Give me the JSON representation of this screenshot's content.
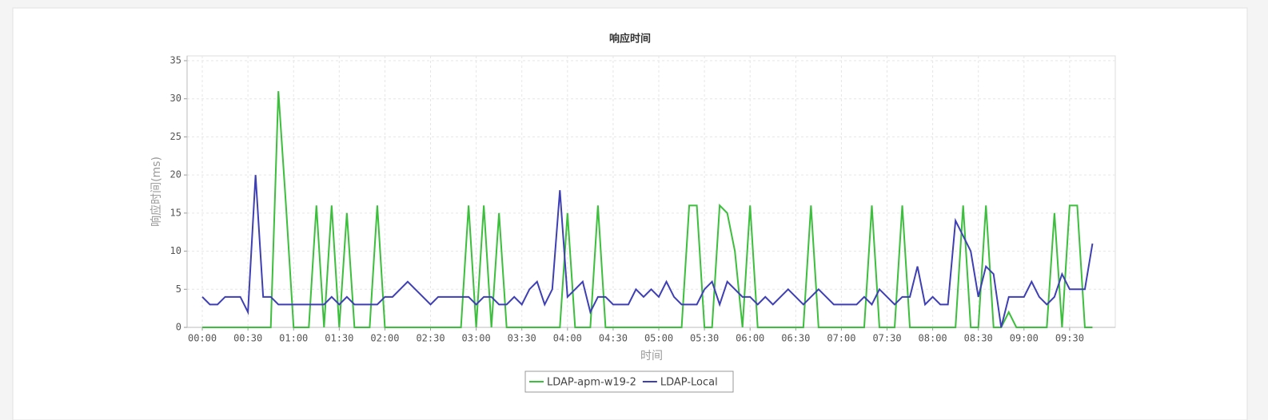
{
  "chart_data": {
    "type": "line",
    "title": "响应时间",
    "x_label": "时间",
    "y_label": "响应时间(ms)",
    "x": [
      0,
      5,
      10,
      15,
      20,
      25,
      30,
      35,
      40,
      45,
      50,
      55,
      60,
      65,
      70,
      75,
      80,
      85,
      90,
      95,
      100,
      105,
      110,
      115,
      120,
      125,
      130,
      135,
      140,
      145,
      150,
      155,
      160,
      165,
      170,
      175,
      180,
      185,
      190,
      195,
      200,
      205,
      210,
      215,
      220,
      225,
      230,
      235,
      240,
      245,
      250,
      255,
      260,
      265,
      270,
      275,
      280,
      285,
      290,
      295,
      300,
      305,
      310,
      315,
      320,
      325,
      330,
      335,
      340,
      345,
      350,
      355,
      360,
      365,
      370,
      375,
      380,
      385,
      390,
      395,
      400,
      405,
      410,
      415,
      420,
      425,
      430,
      435,
      440,
      445,
      450,
      455,
      460,
      465,
      470,
      475,
      480,
      485,
      490,
      495,
      500,
      505,
      510,
      515,
      520,
      525,
      530,
      535,
      540,
      545,
      550,
      555,
      560,
      565,
      570,
      575,
      580,
      585
    ],
    "series": [
      {
        "name": "LDAP-apm-w19-2",
        "color": "#3cbf3c",
        "values": [
          0,
          0,
          0,
          0,
          0,
          0,
          0,
          0,
          0,
          0,
          31,
          16,
          0,
          0,
          0,
          16,
          0,
          16,
          0,
          15,
          0,
          0,
          0,
          16,
          0,
          0,
          0,
          0,
          0,
          0,
          0,
          0,
          0,
          0,
          0,
          16,
          0,
          16,
          0,
          15,
          0,
          0,
          0,
          0,
          0,
          0,
          0,
          0,
          15,
          0,
          0,
          0,
          16,
          0,
          0,
          0,
          0,
          0,
          0,
          0,
          0,
          0,
          0,
          0,
          16,
          16,
          0,
          0,
          16,
          15,
          10,
          0,
          16,
          0,
          0,
          0,
          0,
          0,
          0,
          0,
          16,
          0,
          0,
          0,
          0,
          0,
          0,
          0,
          16,
          0,
          0,
          0,
          16,
          0,
          0,
          0,
          0,
          0,
          0,
          0,
          16,
          0,
          0,
          16,
          0,
          0,
          2,
          0,
          0,
          0,
          0,
          0,
          15,
          0,
          16,
          16,
          0,
          0
        ]
      },
      {
        "name": "LDAP-Local",
        "color": "#3f3fb5",
        "values": [
          4,
          3,
          3,
          4,
          4,
          4,
          2,
          20,
          4,
          4,
          3,
          3,
          3,
          3,
          3,
          3,
          3,
          4,
          3,
          4,
          3,
          3,
          3,
          3,
          4,
          4,
          5,
          6,
          5,
          4,
          3,
          4,
          4,
          4,
          4,
          4,
          3,
          4,
          4,
          3,
          3,
          4,
          3,
          5,
          6,
          3,
          5,
          18,
          4,
          5,
          6,
          2,
          4,
          4,
          3,
          3,
          3,
          5,
          4,
          5,
          4,
          6,
          4,
          3,
          3,
          3,
          5,
          6,
          3,
          6,
          5,
          4,
          4,
          3,
          4,
          3,
          4,
          5,
          4,
          3,
          4,
          5,
          4,
          3,
          3,
          3,
          3,
          4,
          3,
          5,
          4,
          3,
          4,
          4,
          8,
          3,
          4,
          3,
          3,
          14,
          12,
          10,
          4,
          8,
          7,
          0,
          4,
          4,
          4,
          6,
          4,
          3,
          4,
          7,
          5,
          5,
          5,
          11
        ]
      }
    ],
    "xlim": [
      -10,
      600
    ],
    "ylim": [
      0,
      35
    ],
    "xticks": [
      {
        "value": 0,
        "label": "00:00"
      },
      {
        "value": 30,
        "label": "00:30"
      },
      {
        "value": 60,
        "label": "01:00"
      },
      {
        "value": 90,
        "label": "01:30"
      },
      {
        "value": 120,
        "label": "02:00"
      },
      {
        "value": 150,
        "label": "02:30"
      },
      {
        "value": 180,
        "label": "03:00"
      },
      {
        "value": 210,
        "label": "03:30"
      },
      {
        "value": 240,
        "label": "04:00"
      },
      {
        "value": 270,
        "label": "04:30"
      },
      {
        "value": 300,
        "label": "05:00"
      },
      {
        "value": 330,
        "label": "05:30"
      },
      {
        "value": 360,
        "label": "06:00"
      },
      {
        "value": 390,
        "label": "06:30"
      },
      {
        "value": 420,
        "label": "07:00"
      },
      {
        "value": 450,
        "label": "07:30"
      },
      {
        "value": 480,
        "label": "08:00"
      },
      {
        "value": 510,
        "label": "08:30"
      },
      {
        "value": 540,
        "label": "09:00"
      },
      {
        "value": 570,
        "label": "09:30"
      }
    ],
    "yticks": [
      0,
      5,
      10,
      15,
      20,
      25,
      30,
      35
    ],
    "grid": true
  }
}
